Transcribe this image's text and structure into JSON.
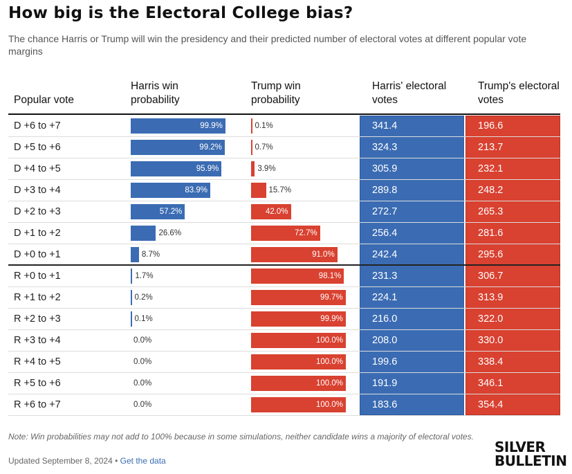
{
  "title": "How big is the Electoral College bias?",
  "subtitle": "The chance Harris or Trump will win the presidency and their predicted number of electoral votes at different popular vote margins",
  "columns": {
    "popular_vote": "Popular vote",
    "harris_prob": "Harris win probability",
    "trump_prob": "Trump win probability",
    "harris_ev": "Harris' electoral votes",
    "trump_ev": "Trump's electoral votes"
  },
  "colors": {
    "harris": "#3b6cb3",
    "trump": "#d94130"
  },
  "note": "Note: Win probabilities may not add to 100% because in some simulations, neither candidate wins a majority of electoral votes.",
  "updated": "Updated September 8, 2024",
  "updated_sep": " • ",
  "data_link": "Get the data",
  "logo_line1": "SILVER",
  "logo_line2": "BULLETIN",
  "chart_data": {
    "type": "table",
    "rows": [
      {
        "margin": "D +6 to +7",
        "harris_prob": 99.9,
        "trump_prob": 0.1,
        "harris_prob_label": "99.9%",
        "trump_prob_label": "0.1%",
        "harris_ev": "341.4",
        "trump_ev": "196.6"
      },
      {
        "margin": "D +5 to +6",
        "harris_prob": 99.2,
        "trump_prob": 0.7,
        "harris_prob_label": "99.2%",
        "trump_prob_label": "0.7%",
        "harris_ev": "324.3",
        "trump_ev": "213.7"
      },
      {
        "margin": "D +4 to +5",
        "harris_prob": 95.9,
        "trump_prob": 3.9,
        "harris_prob_label": "95.9%",
        "trump_prob_label": "3.9%",
        "harris_ev": "305.9",
        "trump_ev": "232.1"
      },
      {
        "margin": "D +3 to +4",
        "harris_prob": 83.9,
        "trump_prob": 15.7,
        "harris_prob_label": "83.9%",
        "trump_prob_label": "15.7%",
        "harris_ev": "289.8",
        "trump_ev": "248.2"
      },
      {
        "margin": "D +2 to +3",
        "harris_prob": 57.2,
        "trump_prob": 42.0,
        "harris_prob_label": "57.2%",
        "trump_prob_label": "42.0%",
        "harris_ev": "272.7",
        "trump_ev": "265.3"
      },
      {
        "margin": "D +1 to +2",
        "harris_prob": 26.6,
        "trump_prob": 72.7,
        "harris_prob_label": "26.6%",
        "trump_prob_label": "72.7%",
        "harris_ev": "256.4",
        "trump_ev": "281.6"
      },
      {
        "margin": "D +0 to +1",
        "harris_prob": 8.7,
        "trump_prob": 91.0,
        "harris_prob_label": "8.7%",
        "trump_prob_label": "91.0%",
        "harris_ev": "242.4",
        "trump_ev": "295.6"
      },
      {
        "margin": "R +0 to +1",
        "harris_prob": 1.7,
        "trump_prob": 98.1,
        "harris_prob_label": "1.7%",
        "trump_prob_label": "98.1%",
        "harris_ev": "231.3",
        "trump_ev": "306.7"
      },
      {
        "margin": "R +1 to +2",
        "harris_prob": 0.2,
        "trump_prob": 99.7,
        "harris_prob_label": "0.2%",
        "trump_prob_label": "99.7%",
        "harris_ev": "224.1",
        "trump_ev": "313.9"
      },
      {
        "margin": "R +2 to +3",
        "harris_prob": 0.1,
        "trump_prob": 99.9,
        "harris_prob_label": "0.1%",
        "trump_prob_label": "99.9%",
        "harris_ev": "216.0",
        "trump_ev": "322.0"
      },
      {
        "margin": "R +3 to +4",
        "harris_prob": 0.0,
        "trump_prob": 100.0,
        "harris_prob_label": "0.0%",
        "trump_prob_label": "100.0%",
        "harris_ev": "208.0",
        "trump_ev": "330.0"
      },
      {
        "margin": "R +4 to +5",
        "harris_prob": 0.0,
        "trump_prob": 100.0,
        "harris_prob_label": "0.0%",
        "trump_prob_label": "100.0%",
        "harris_ev": "199.6",
        "trump_ev": "338.4"
      },
      {
        "margin": "R +5 to +6",
        "harris_prob": 0.0,
        "trump_prob": 100.0,
        "harris_prob_label": "0.0%",
        "trump_prob_label": "100.0%",
        "harris_ev": "191.9",
        "trump_ev": "346.1"
      },
      {
        "margin": "R +6 to +7",
        "harris_prob": 0.0,
        "trump_prob": 100.0,
        "harris_prob_label": "0.0%",
        "trump_prob_label": "100.0%",
        "harris_ev": "183.6",
        "trump_ev": "354.4"
      }
    ]
  }
}
